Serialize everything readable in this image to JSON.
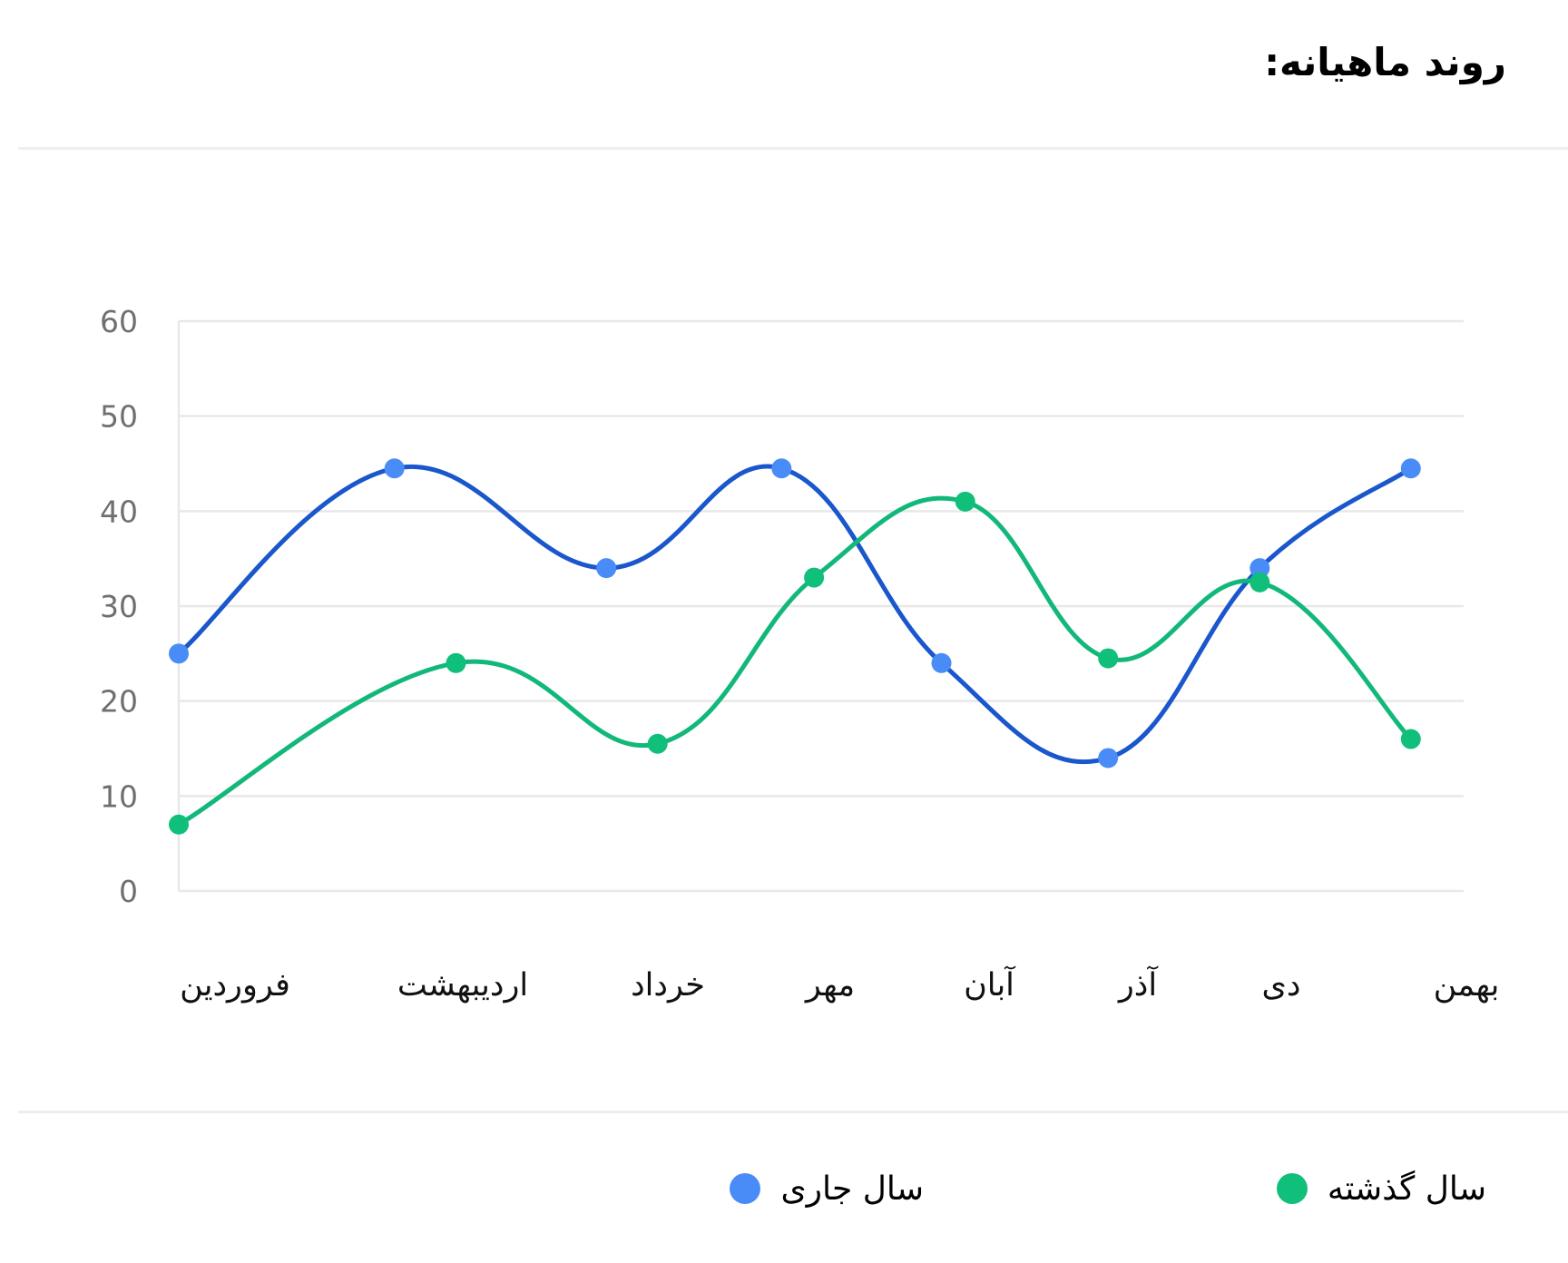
{
  "header": {
    "title": "روند ماهیانه:"
  },
  "chart_data": {
    "type": "line",
    "curve": "smooth",
    "title": "",
    "xlabel": "",
    "ylabel": "",
    "ylim": [
      0,
      60
    ],
    "yticks": [
      0,
      10,
      20,
      30,
      40,
      50,
      60
    ],
    "grid": true,
    "legend_position": "bottom",
    "categories": [
      "فروردین",
      "اردیبهشت",
      "خرداد",
      "مهر",
      "آبان",
      "آذر",
      "دی",
      "بهمن"
    ],
    "series": [
      {
        "name": "سال جاری",
        "color": "#1a56cc",
        "marker_color": "#4a8cf7",
        "points": [
          {
            "x": 0.0,
            "y": 25
          },
          {
            "x": 0.7,
            "y": 44.5
          },
          {
            "x": 1.7,
            "y": 34
          },
          {
            "x": 2.7,
            "y": 44.5
          },
          {
            "x": 3.7,
            "y": 24
          },
          {
            "x": 4.8,
            "y": 14
          },
          {
            "x": 5.85,
            "y": 34
          },
          {
            "x": 6.7,
            "y": 44.5
          }
        ]
      },
      {
        "name": "سال گذشته",
        "color": "#12b87a",
        "marker_color": "#10bf7a",
        "points": [
          {
            "x": 0.0,
            "y": 7
          },
          {
            "x": 0.97,
            "y": 24
          },
          {
            "x": 1.95,
            "y": 15.5
          },
          {
            "x": 2.9,
            "y": 33
          },
          {
            "x": 3.85,
            "y": 41
          },
          {
            "x": 4.8,
            "y": 24.5
          },
          {
            "x": 5.85,
            "y": 32.5
          },
          {
            "x": 6.7,
            "y": 16
          }
        ]
      }
    ]
  },
  "legend": {
    "items": [
      {
        "label": "سال گذشته",
        "color": "#10bf7a"
      },
      {
        "label": "سال جاری",
        "color": "#4a8cf7"
      }
    ]
  }
}
